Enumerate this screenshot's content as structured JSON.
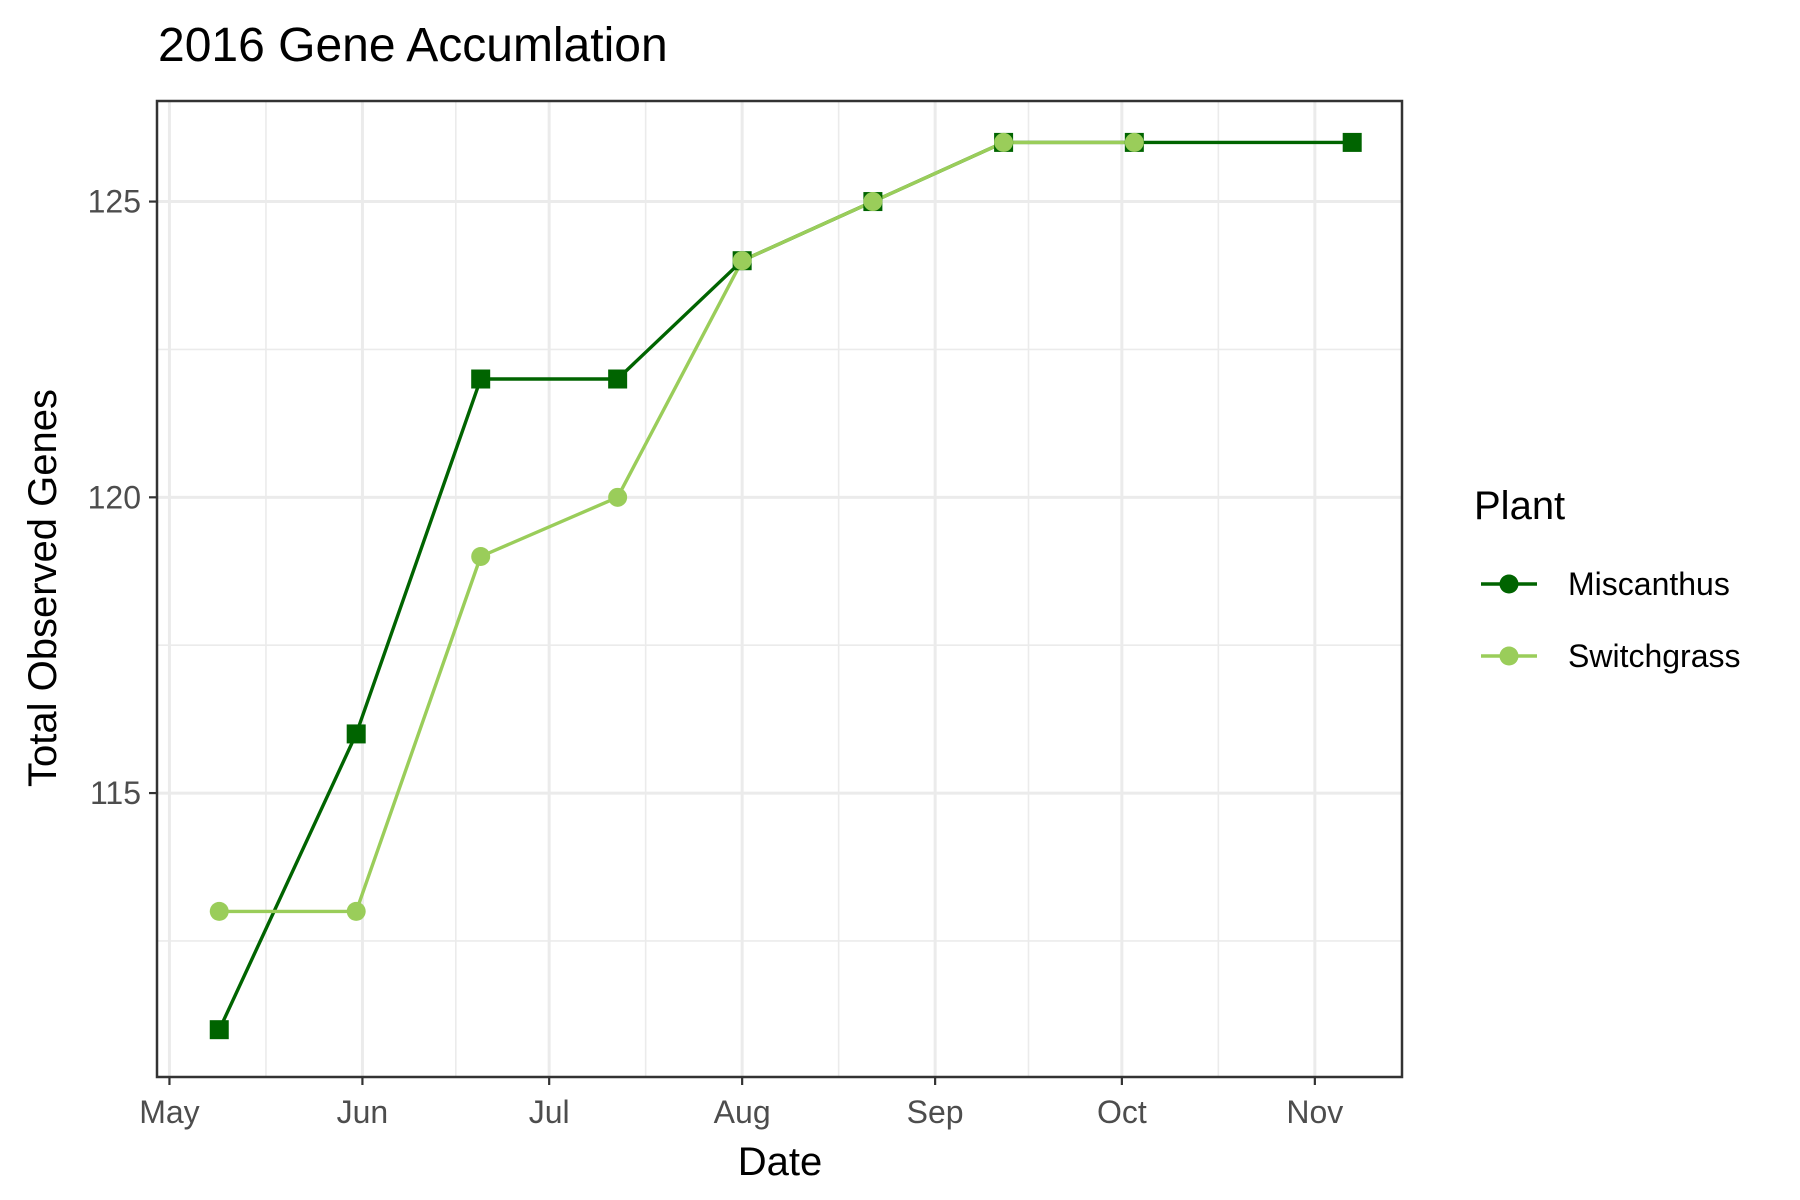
{
  "chart_data": {
    "type": "line",
    "title": "2016 Gene Accumlation",
    "xlabel": "Date",
    "ylabel": "Total Observed Genes",
    "x_ticks": [
      "May",
      "Jun",
      "Jul",
      "Aug",
      "Sep",
      "Oct",
      "Nov"
    ],
    "x_tick_dates": [
      "2016-05-01",
      "2016-06-01",
      "2016-07-01",
      "2016-08-01",
      "2016-09-01",
      "2016-10-01",
      "2016-11-01"
    ],
    "y_ticks": [
      115,
      120,
      125
    ],
    "xlim": [
      "2016-04-29",
      "2016-11-15"
    ],
    "ylim": [
      110.2,
      126.7
    ],
    "grid": true,
    "legend_position": "right",
    "legend_title": "Plant",
    "series": [
      {
        "name": "Miscanthus",
        "color": "#006400",
        "marker": "square",
        "x": [
          "2016-05-09",
          "2016-05-31",
          "2016-06-20",
          "2016-07-12",
          "2016-08-01",
          "2016-08-22",
          "2016-09-12",
          "2016-10-03",
          "2016-11-07"
        ],
        "y": [
          111,
          116,
          122,
          122,
          124,
          125,
          126,
          126,
          126
        ]
      },
      {
        "name": "Switchgrass",
        "color": "#9acd5a",
        "marker": "circle",
        "x": [
          "2016-05-09",
          "2016-05-31",
          "2016-06-20",
          "2016-07-12",
          "2016-08-01",
          "2016-08-22",
          "2016-09-12",
          "2016-10-03"
        ],
        "y": [
          113,
          113,
          119,
          120,
          124,
          125,
          126,
          126
        ]
      }
    ]
  }
}
